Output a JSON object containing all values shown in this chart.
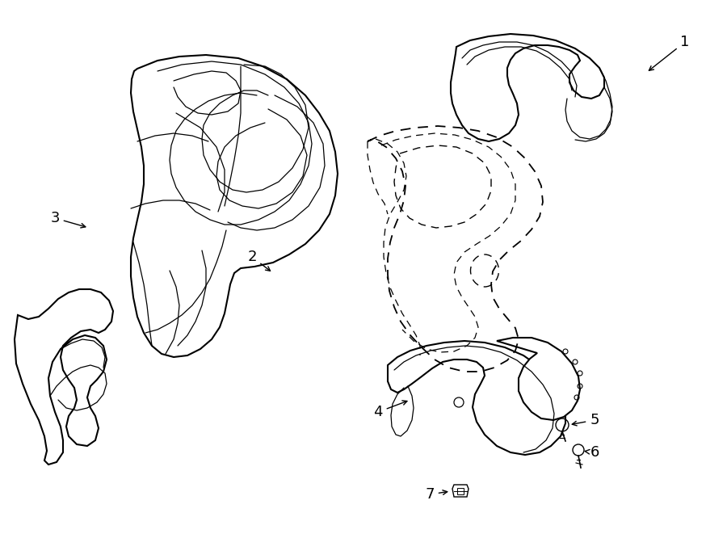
{
  "bg_color": "#ffffff",
  "line_color": "#000000",
  "lw_main": 1.5,
  "lw_inner": 0.9,
  "label_fontsize": 13
}
